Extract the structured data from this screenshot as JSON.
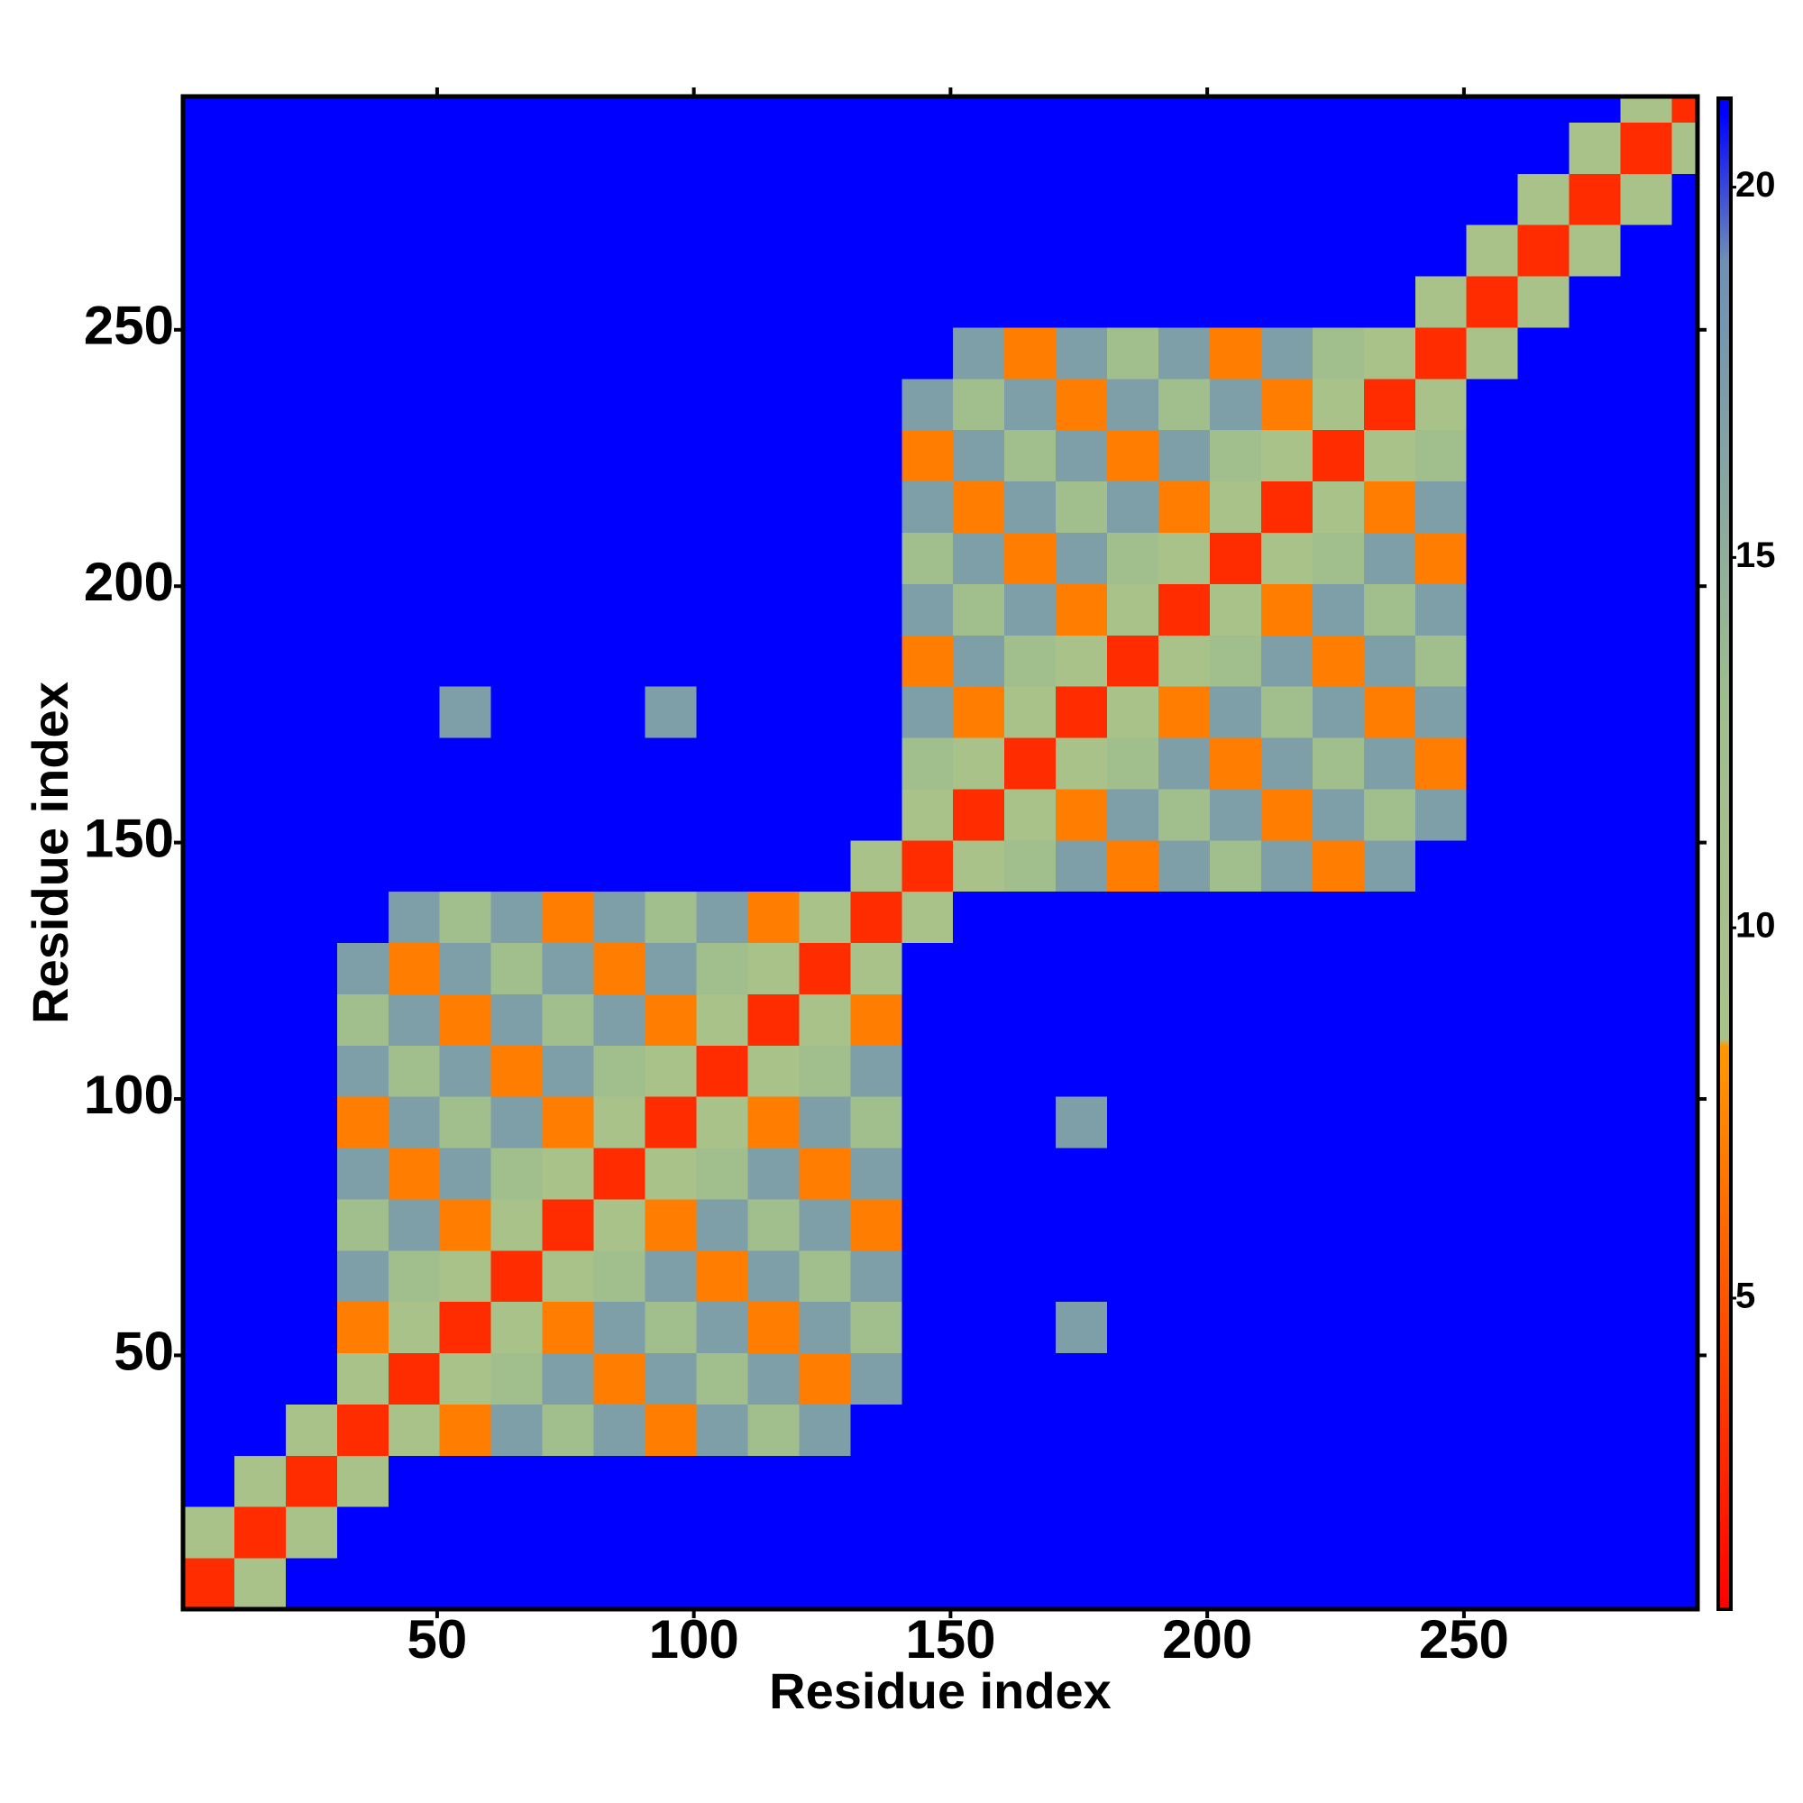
{
  "chart_data": {
    "type": "heatmap",
    "xlabel": "Residue index",
    "ylabel": "Residue index",
    "xlim": [
      0.5,
      295.5
    ],
    "ylim": [
      0.5,
      295.5
    ],
    "xticks": [
      50,
      100,
      150,
      200,
      250
    ],
    "yticks": [
      50,
      100,
      150,
      200,
      250
    ],
    "xbins": [
      0.5,
      10.5,
      20.5,
      30.5,
      40.5,
      50.5,
      60.5,
      70.5,
      80.5,
      90.5,
      100.5,
      110.5,
      120.5,
      130.5,
      140.5,
      150.5,
      160.5,
      170.5,
      180.5,
      190.5,
      200.5,
      210.5,
      220.5,
      230.5,
      240.5,
      250.5,
      260.5,
      270.5,
      280.5,
      290.5,
      295.5
    ],
    "ybins": [
      0.5,
      10.5,
      20.5,
      30.5,
      40.5,
      50.5,
      60.5,
      70.5,
      80.5,
      90.5,
      100.5,
      110.5,
      120.5,
      130.5,
      140.5,
      150.5,
      160.5,
      170.5,
      180.5,
      190.5,
      200.5,
      210.5,
      220.5,
      230.5,
      240.5,
      250.5,
      260.5,
      270.5,
      280.5,
      290.5,
      295.5
    ],
    "values": [
      [
        3,
        9,
        21,
        21,
        21,
        21,
        21,
        21,
        21,
        21,
        21,
        21,
        21,
        21,
        21,
        21,
        21,
        21,
        21,
        21,
        21,
        21,
        21,
        21,
        21,
        21,
        21,
        21,
        21,
        21
      ],
      [
        9,
        3,
        9,
        21,
        21,
        21,
        21,
        21,
        21,
        21,
        21,
        21,
        21,
        21,
        21,
        21,
        21,
        21,
        21,
        21,
        21,
        21,
        21,
        21,
        21,
        21,
        21,
        21,
        21,
        21
      ],
      [
        21,
        9,
        3,
        9,
        21,
        21,
        21,
        21,
        21,
        21,
        21,
        21,
        21,
        21,
        21,
        21,
        21,
        21,
        21,
        21,
        21,
        21,
        21,
        21,
        21,
        21,
        21,
        21,
        21,
        21
      ],
      [
        21,
        21,
        9,
        3,
        9,
        7,
        17,
        12,
        17,
        7,
        17,
        12,
        17,
        21,
        21,
        21,
        21,
        21,
        21,
        21,
        21,
        21,
        21,
        21,
        21,
        21,
        21,
        21,
        21,
        21
      ],
      [
        21,
        21,
        21,
        9,
        3,
        9,
        12,
        17,
        7,
        17,
        12,
        17,
        7,
        17,
        21,
        21,
        21,
        21,
        21,
        21,
        21,
        21,
        21,
        21,
        21,
        21,
        21,
        21,
        21,
        21
      ],
      [
        21,
        21,
        21,
        7,
        9,
        3,
        9,
        7,
        17,
        12,
        17,
        7,
        17,
        12,
        21,
        21,
        21,
        17,
        21,
        21,
        21,
        21,
        21,
        21,
        21,
        21,
        21,
        21,
        21,
        21
      ],
      [
        21,
        21,
        21,
        17,
        12,
        9,
        3,
        9,
        12,
        17,
        7,
        17,
        12,
        17,
        21,
        21,
        21,
        21,
        21,
        21,
        21,
        21,
        21,
        21,
        21,
        21,
        21,
        21,
        21,
        21
      ],
      [
        21,
        21,
        21,
        12,
        17,
        7,
        9,
        3,
        9,
        7,
        17,
        12,
        17,
        7,
        21,
        21,
        21,
        21,
        21,
        21,
        21,
        21,
        21,
        21,
        21,
        21,
        21,
        21,
        21,
        21
      ],
      [
        21,
        21,
        21,
        17,
        7,
        17,
        12,
        9,
        3,
        9,
        12,
        17,
        7,
        17,
        21,
        21,
        21,
        21,
        21,
        21,
        21,
        21,
        21,
        21,
        21,
        21,
        21,
        21,
        21,
        21
      ],
      [
        21,
        21,
        21,
        7,
        17,
        12,
        17,
        7,
        9,
        3,
        9,
        7,
        17,
        12,
        21,
        21,
        21,
        17,
        21,
        21,
        21,
        21,
        21,
        21,
        21,
        21,
        21,
        21,
        21,
        21
      ],
      [
        21,
        21,
        21,
        17,
        12,
        17,
        7,
        17,
        12,
        9,
        3,
        9,
        12,
        17,
        21,
        21,
        21,
        21,
        21,
        21,
        21,
        21,
        21,
        21,
        21,
        21,
        21,
        21,
        21,
        21
      ],
      [
        21,
        21,
        21,
        12,
        17,
        7,
        17,
        12,
        17,
        7,
        9,
        3,
        9,
        7,
        21,
        21,
        21,
        21,
        21,
        21,
        21,
        21,
        21,
        21,
        21,
        21,
        21,
        21,
        21,
        21
      ],
      [
        21,
        21,
        21,
        17,
        7,
        17,
        12,
        17,
        7,
        17,
        12,
        9,
        3,
        9,
        21,
        21,
        21,
        21,
        21,
        21,
        21,
        21,
        21,
        21,
        21,
        21,
        21,
        21,
        21,
        21
      ],
      [
        21,
        21,
        21,
        21,
        17,
        12,
        17,
        7,
        17,
        12,
        17,
        7,
        9,
        3,
        9,
        21,
        21,
        21,
        21,
        21,
        21,
        21,
        21,
        21,
        21,
        21,
        21,
        21,
        21,
        21
      ],
      [
        21,
        21,
        21,
        21,
        21,
        21,
        21,
        21,
        21,
        21,
        21,
        21,
        21,
        9,
        3,
        9,
        12,
        17,
        7,
        17,
        12,
        17,
        7,
        17,
        21,
        21,
        21,
        21,
        21,
        21
      ],
      [
        21,
        21,
        21,
        21,
        21,
        21,
        21,
        21,
        21,
        21,
        21,
        21,
        21,
        21,
        9,
        3,
        9,
        7,
        17,
        12,
        17,
        7,
        17,
        12,
        17,
        21,
        21,
        21,
        21,
        21
      ],
      [
        21,
        21,
        21,
        21,
        21,
        21,
        21,
        21,
        21,
        21,
        21,
        21,
        21,
        21,
        12,
        9,
        3,
        9,
        12,
        17,
        7,
        17,
        12,
        17,
        7,
        21,
        21,
        21,
        21,
        21
      ],
      [
        21,
        21,
        21,
        21,
        21,
        17,
        21,
        21,
        21,
        17,
        21,
        21,
        21,
        21,
        17,
        7,
        9,
        3,
        9,
        7,
        17,
        12,
        17,
        7,
        17,
        21,
        21,
        21,
        21,
        21
      ],
      [
        21,
        21,
        21,
        21,
        21,
        21,
        21,
        21,
        21,
        21,
        21,
        21,
        21,
        21,
        7,
        17,
        12,
        9,
        3,
        9,
        12,
        17,
        7,
        17,
        12,
        21,
        21,
        21,
        21,
        21
      ],
      [
        21,
        21,
        21,
        21,
        21,
        21,
        21,
        21,
        21,
        21,
        21,
        21,
        21,
        21,
        17,
        12,
        17,
        7,
        9,
        3,
        9,
        7,
        17,
        12,
        17,
        21,
        21,
        21,
        21,
        21
      ],
      [
        21,
        21,
        21,
        21,
        21,
        21,
        21,
        21,
        21,
        21,
        21,
        21,
        21,
        21,
        12,
        17,
        7,
        17,
        12,
        9,
        3,
        9,
        12,
        17,
        7,
        21,
        21,
        21,
        21,
        21
      ],
      [
        21,
        21,
        21,
        21,
        21,
        21,
        21,
        21,
        21,
        21,
        21,
        21,
        21,
        21,
        17,
        7,
        17,
        12,
        17,
        7,
        9,
        3,
        9,
        7,
        17,
        21,
        21,
        21,
        21,
        21
      ],
      [
        21,
        21,
        21,
        21,
        21,
        21,
        21,
        21,
        21,
        21,
        21,
        21,
        21,
        21,
        7,
        17,
        12,
        17,
        7,
        17,
        12,
        9,
        3,
        9,
        12,
        21,
        21,
        21,
        21,
        21
      ],
      [
        21,
        21,
        21,
        21,
        21,
        21,
        21,
        21,
        21,
        21,
        21,
        21,
        21,
        21,
        17,
        12,
        17,
        7,
        17,
        12,
        17,
        7,
        9,
        3,
        9,
        21,
        21,
        21,
        21,
        21
      ],
      [
        21,
        21,
        21,
        21,
        21,
        21,
        21,
        21,
        21,
        21,
        21,
        21,
        21,
        21,
        21,
        17,
        7,
        17,
        12,
        17,
        7,
        17,
        12,
        9,
        3,
        9,
        21,
        21,
        21,
        21
      ],
      [
        21,
        21,
        21,
        21,
        21,
        21,
        21,
        21,
        21,
        21,
        21,
        21,
        21,
        21,
        21,
        21,
        21,
        21,
        21,
        21,
        21,
        21,
        21,
        21,
        9,
        3,
        9,
        21,
        21,
        21
      ],
      [
        21,
        21,
        21,
        21,
        21,
        21,
        21,
        21,
        21,
        21,
        21,
        21,
        21,
        21,
        21,
        21,
        21,
        21,
        21,
        21,
        21,
        21,
        21,
        21,
        21,
        9,
        3,
        9,
        21,
        21
      ],
      [
        21,
        21,
        21,
        21,
        21,
        21,
        21,
        21,
        21,
        21,
        21,
        21,
        21,
        21,
        21,
        21,
        21,
        21,
        21,
        21,
        21,
        21,
        21,
        21,
        21,
        21,
        9,
        3,
        9,
        21
      ],
      [
        21,
        21,
        21,
        21,
        21,
        21,
        21,
        21,
        21,
        21,
        21,
        21,
        21,
        21,
        21,
        21,
        21,
        21,
        21,
        21,
        21,
        21,
        21,
        21,
        21,
        21,
        21,
        9,
        3,
        9
      ],
      [
        21,
        21,
        21,
        21,
        21,
        21,
        21,
        21,
        21,
        21,
        21,
        21,
        21,
        21,
        21,
        21,
        21,
        21,
        21,
        21,
        21,
        21,
        21,
        21,
        21,
        21,
        21,
        21,
        9,
        3
      ]
    ],
    "zlim": [
      0.8,
      21.2
    ],
    "zticks": [
      5,
      10,
      15,
      20
    ],
    "colorscale": [
      {
        "value": 0.8,
        "color": "#ff0000"
      },
      {
        "value": 8.4,
        "color": "#ff9900"
      },
      {
        "value": 8.5,
        "color": "#a9c28a"
      },
      {
        "value": 13,
        "color": "#9fbe8e"
      },
      {
        "value": 19,
        "color": "#6f8fb5"
      },
      {
        "value": 21,
        "color": "#0000ff"
      }
    ]
  }
}
